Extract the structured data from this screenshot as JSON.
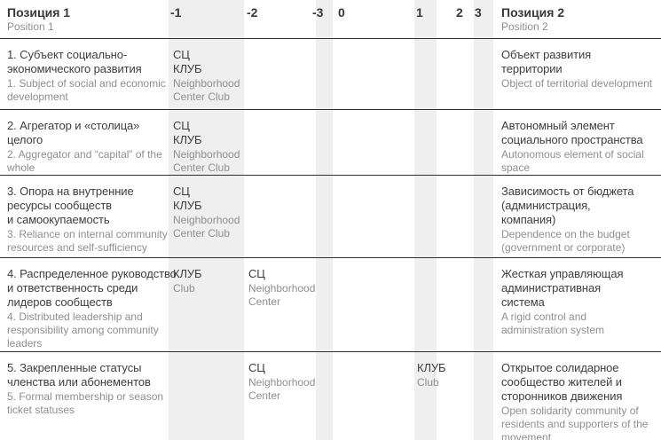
{
  "header": {
    "position1": {
      "ru": "Позиция 1",
      "en": "Position 1"
    },
    "position2": {
      "ru": "Позиция 2",
      "en": "Position 2"
    },
    "scale": [
      "-1",
      "-2",
      "-3",
      "0",
      "1",
      "2",
      "3"
    ]
  },
  "colors": {
    "band": "#efefef",
    "border": "#2f2f2f",
    "text_primary": "#3e3e3e",
    "text_secondary": "#8f8f8f"
  },
  "legend": {
    "sc_ru": "СЦ",
    "sc_en": "Neighborhood Center",
    "club_ru": "КЛУБ",
    "club_en": "Club"
  },
  "rows": [
    {
      "left": {
        "ru": "1. Субъект социально-\nэкономического развития",
        "en": "1. Subject of social and economic\ndevelopment"
      },
      "cells": [
        {
          "column": "-1",
          "ru": "СЦ\nКЛУБ",
          "en": "Neighborhood\nCenter Club"
        }
      ],
      "right": {
        "ru": "Объект развития\nтерритории",
        "en": "Object of territorial development"
      }
    },
    {
      "left": {
        "ru": "2. Агрегатор и «столица»\nцелого",
        "en": "2. Aggregator and “capital” of the\nwhole"
      },
      "cells": [
        {
          "column": "-1",
          "ru": "СЦ\nКЛУБ",
          "en": "Neighborhood\nCenter Club"
        }
      ],
      "right": {
        "ru": "Автономный элемент\nсоциального пространства",
        "en": "Autonomous element of social\nspace"
      }
    },
    {
      "left": {
        "ru": "3. Опора на внутренние\nресурсы сообществ\nи самоокупаемость",
        "en": "3. Reliance on internal community\nresources and self-sufficiency"
      },
      "cells": [
        {
          "column": "-1",
          "ru": "СЦ\nКЛУБ",
          "en": "Neighborhood\nCenter Club"
        }
      ],
      "right": {
        "ru": "Зависимость от бюджета\n(администрация,\nкомпания)",
        "en": "Dependence on the budget\n(government or corporate)"
      }
    },
    {
      "left": {
        "ru": "4. Распределенное руководство\nи ответственность среди\nлидеров сообществ",
        "en": "4. Distributed leadership and\nresponsibility among community\nleaders"
      },
      "cells": [
        {
          "column": "-1",
          "ru": "КЛУБ",
          "en": "Club"
        },
        {
          "column": "-2",
          "ru": "СЦ",
          "en": "Neighborhood\nCenter"
        }
      ],
      "right": {
        "ru": "Жесткая управляющая\nадминистративная\nсистема",
        "en": "A rigid control and\nadministration system"
      }
    },
    {
      "left": {
        "ru": "5. Закрепленные статусы\nчленства или абонементов",
        "en": "5. Formal membership or season\nticket statuses"
      },
      "cells": [
        {
          "column": "-2",
          "ru": "СЦ",
          "en": "Neighborhood\nCenter"
        },
        {
          "column": "1",
          "ru": "КЛУБ",
          "en": "Club"
        }
      ],
      "right": {
        "ru": "Открытое солидарное\nсообщество жителей и\nсторонников движения",
        "en": "Open solidarity community of\nresidents and supporters of the\nmovement"
      }
    }
  ]
}
